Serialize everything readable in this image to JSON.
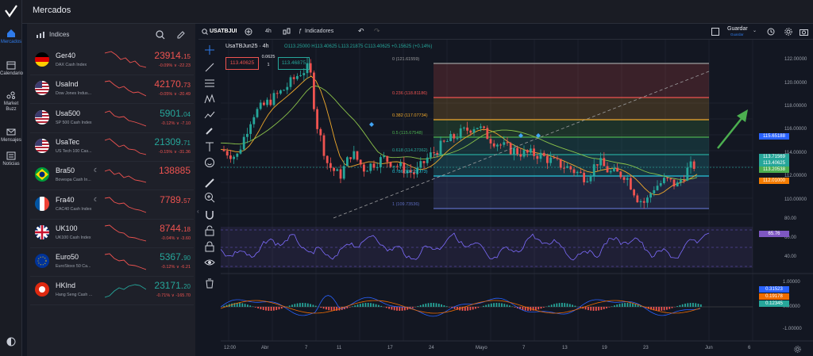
{
  "app": {
    "title": "Mercados"
  },
  "rail": [
    {
      "label": "Mercados",
      "icon": "home-icon"
    },
    {
      "label": "Calendario",
      "icon": "calendar-icon"
    },
    {
      "label": "Market Buzz",
      "icon": "market-buzz-icon"
    },
    {
      "label": "Mensajes",
      "icon": "mail-icon"
    },
    {
      "label": "Noticias",
      "icon": "news-icon"
    }
  ],
  "watchlist": {
    "title": "Indices",
    "items": [
      {
        "symbol": "Ger40",
        "desc": "DAX Cash Index",
        "price_main": "23914.",
        "price_dec": "15",
        "chg": "-0.09% ∨ -22.23",
        "dir": "down"
      },
      {
        "symbol": "UsaInd",
        "desc": "Dow Jones Indus...",
        "price_main": "42170.",
        "price_dec": "73",
        "chg": "-0.05% ∨ -20.49",
        "dir": "down"
      },
      {
        "symbol": "Usa500",
        "desc": "SP 500 Cash Index",
        "price_main": "5901.",
        "price_dec": "04",
        "chg": "-0.12% ∨ -7.10",
        "dir": "up"
      },
      {
        "symbol": "UsaTec",
        "desc": "US Tech 100 Cas...",
        "price_main": "21309.",
        "price_dec": "71",
        "chg": "-0.15% ∨ -31.36",
        "dir": "up"
      },
      {
        "symbol": "Bra50",
        "desc": "Bovespa Cash In...",
        "price_main": "138885",
        "price_dec": "",
        "chg": "",
        "dir": "down"
      },
      {
        "symbol": "Fra40",
        "desc": "CAC40 Cash Index",
        "price_main": "7789.",
        "price_dec": "57",
        "chg": "",
        "dir": "down"
      },
      {
        "symbol": "UK100",
        "desc": "UK100 Cash Index",
        "price_main": "8744.",
        "price_dec": "18",
        "chg": "-0.04% ∨ -3.60",
        "dir": "down"
      },
      {
        "symbol": "Euro50",
        "desc": "EuroStoxx 50 Ca...",
        "price_main": "5367.",
        "price_dec": "90",
        "chg": "-0.12% ∨ -6.21",
        "dir": "up"
      },
      {
        "symbol": "HKInd",
        "desc": "Hang Seng Cash ...",
        "price_main": "23171.",
        "price_dec": "20",
        "chg": "-0.71% ∨ -165.70",
        "dir": "up"
      }
    ]
  },
  "toolbar": {
    "symbol": "USATBJUI",
    "interval": "4h",
    "indicators": "Indicadores",
    "save": "Guardar",
    "save_sub": "Guardar"
  },
  "chart": {
    "title": "UsaTBJun25 · 4h",
    "ohlc": "O113.25000 H113.40625 L113.21875 C113.40625 +0.15625 (+0.14%)",
    "bid": "113.40625",
    "spread_top": "0.0625",
    "spread_bottom": "1",
    "ask": "113.46875",
    "fib_levels": [
      {
        "label": "0 (121.61559)",
        "color": "#9e9ea0"
      },
      {
        "label": "0.236 (118.81186)",
        "color": "#ef5350"
      },
      {
        "label": "0.382 (117.07734)",
        "color": "#f0a92b"
      },
      {
        "label": "0.5 (115.67548)",
        "color": "#4caf50"
      },
      {
        "label": "0.618 (114.27362)",
        "color": "#26a69a"
      },
      {
        "label": "0.786 (112.27773)",
        "color": "#26c6da"
      },
      {
        "label": "1 (109.73536)",
        "color": "#5c6bc0"
      }
    ],
    "price_axis": [
      "122.00000",
      "120.00000",
      "118.00000",
      "116.00000",
      "114.00000",
      "112.00000",
      "110.00000"
    ],
    "price_tags": [
      {
        "value": "115.65188",
        "color": "#2962ff"
      },
      {
        "value": "113.71569",
        "color": "#26a69a"
      },
      {
        "value": "113.40625",
        "color": "#26a69a"
      },
      {
        "value": "113.20538",
        "color": "#4caf50"
      },
      {
        "value": "112.01000",
        "color": "#f57c00"
      }
    ],
    "rsi_axis": [
      "80.00",
      "60.00",
      "40.00"
    ],
    "rsi_tag": "65.76",
    "macd_axis": [
      "1.00000",
      "0.00000",
      "-1.00000"
    ],
    "macd_tags": [
      {
        "value": "0.31523",
        "color": "#2962ff"
      },
      {
        "value": "0.19178",
        "color": "#ef6c00"
      },
      {
        "value": "0.12345",
        "color": "#26a69a"
      }
    ],
    "time_axis": [
      "12:00",
      "Abr",
      "7",
      "11",
      "17",
      "24",
      "Mayo",
      "7",
      "13",
      "19",
      "23",
      "Jun",
      "6"
    ]
  },
  "colors": {
    "accent": "#2f7bea",
    "up": "#26a69a",
    "down": "#ef5350",
    "arrow": "#4caf50"
  }
}
